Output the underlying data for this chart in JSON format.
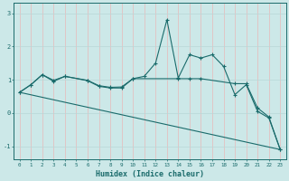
{
  "xlabel": "Humidex (Indice chaleur)",
  "bg_color": "#cce8e8",
  "line_color": "#1a6b6b",
  "grid_color_h": "#b8d8d8",
  "grid_color_v": "#e8b8b8",
  "xlim": [
    -0.5,
    23.5
  ],
  "ylim": [
    -1.4,
    3.3
  ],
  "yticks": [
    -1,
    0,
    1,
    2,
    3
  ],
  "xticks": [
    0,
    1,
    2,
    3,
    4,
    5,
    6,
    7,
    8,
    9,
    10,
    11,
    12,
    13,
    14,
    15,
    16,
    17,
    18,
    19,
    20,
    21,
    22,
    23
  ],
  "line1_x": [
    0,
    1,
    2,
    3,
    4,
    6,
    7,
    8,
    9,
    10,
    11,
    12,
    13,
    14,
    15,
    16,
    17,
    18,
    19,
    20,
    21,
    22,
    23
  ],
  "line1_y": [
    0.62,
    0.85,
    1.15,
    0.95,
    1.1,
    0.97,
    0.8,
    0.75,
    0.75,
    1.03,
    1.1,
    1.5,
    2.8,
    1.05,
    1.75,
    1.65,
    1.75,
    1.4,
    0.55,
    0.85,
    0.05,
    -0.15,
    -1.1
  ],
  "line2_x": [
    0,
    1,
    2,
    3,
    4,
    6,
    7,
    8,
    9,
    10,
    14,
    15,
    16,
    19,
    20,
    21,
    22,
    23
  ],
  "line2_y": [
    0.62,
    0.85,
    1.15,
    0.98,
    1.1,
    0.98,
    0.82,
    0.77,
    0.78,
    1.03,
    1.03,
    1.03,
    1.03,
    0.88,
    0.88,
    0.15,
    -0.12,
    -1.1
  ],
  "line3_x": [
    0,
    23
  ],
  "line3_y": [
    0.62,
    -1.1
  ]
}
